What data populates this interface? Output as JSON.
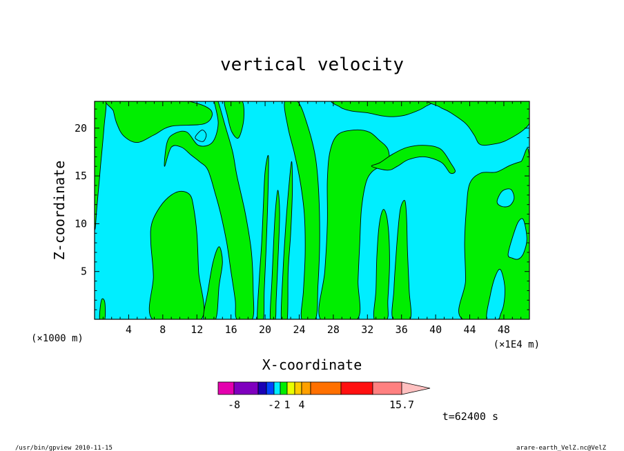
{
  "chart_data": {
    "type": "heatmap",
    "title": "vertical velocity",
    "xlabel": "X-coordinate",
    "ylabel": "Z-coordinate",
    "x_tick_labels": [
      "4",
      "8",
      "12",
      "16",
      "20",
      "24",
      "28",
      "32",
      "36",
      "40",
      "44",
      "48"
    ],
    "x_ticks": [
      4,
      8,
      12,
      16,
      20,
      24,
      28,
      32,
      36,
      40,
      44,
      48
    ],
    "y_tick_labels": [
      "5",
      "10",
      "15",
      "20"
    ],
    "y_ticks": [
      5,
      10,
      15,
      20
    ],
    "xlim": [
      0,
      51
    ],
    "ylim": [
      0,
      22.8
    ],
    "x_unit_left": "(×1000 m)",
    "x_unit_right": "(×1E4 m)",
    "fill_colors": {
      "updraft": "#00ee00",
      "downdraft": "#00eeff"
    },
    "updraft_regions": [
      {
        "label": "x=0-1.3",
        "points": [
          [
            0,
            23
          ],
          [
            1.3,
            23
          ],
          [
            1.1,
            20
          ],
          [
            0.7,
            16
          ],
          [
            0.3,
            12
          ],
          [
            0,
            10
          ]
        ]
      },
      {
        "label": "x=1-13.5 top",
        "points": [
          [
            1.8,
            23
          ],
          [
            9.5,
            23
          ],
          [
            13.5,
            22
          ],
          [
            13,
            20.5
          ],
          [
            9,
            20.2
          ],
          [
            7,
            19.3
          ],
          [
            5,
            18.5
          ],
          [
            3.4,
            19.2
          ],
          [
            2.6,
            20.5
          ],
          [
            2.2,
            21.8
          ]
        ]
      },
      {
        "label": "x=6.5-12.5",
        "points": [
          [
            6.8,
            0
          ],
          [
            6.9,
            4.5
          ],
          [
            6.6,
            8
          ],
          [
            6.7,
            10
          ],
          [
            7.7,
            11.8
          ],
          [
            9,
            13
          ],
          [
            10.2,
            13.4
          ],
          [
            11.2,
            13
          ],
          [
            11.6,
            11.8
          ],
          [
            12,
            9
          ],
          [
            12.2,
            5
          ],
          [
            12.5,
            0
          ]
        ]
      },
      {
        "label": "x=9.2-18.5",
        "points": [
          [
            8.2,
            16
          ],
          [
            9,
            18
          ],
          [
            10.2,
            18
          ],
          [
            11.3,
            17.2
          ],
          [
            12.3,
            16.5
          ],
          [
            13.3,
            15.6
          ],
          [
            14.2,
            13
          ],
          [
            14.8,
            11
          ],
          [
            15.5,
            8
          ],
          [
            16,
            5
          ],
          [
            16.5,
            2
          ],
          [
            16.7,
            0
          ],
          [
            18.5,
            0
          ],
          [
            18.6,
            3
          ],
          [
            18.4,
            7
          ],
          [
            17.7,
            11
          ],
          [
            16.7,
            15
          ],
          [
            16.2,
            17.5
          ],
          [
            15.4,
            20
          ],
          [
            14.4,
            23
          ],
          [
            14,
            23
          ],
          [
            14.5,
            20.5
          ],
          [
            13.8,
            18.5
          ],
          [
            12.2,
            18.2
          ],
          [
            10.8,
            19.6
          ],
          [
            9.3,
            19.4
          ],
          [
            8.5,
            18.5
          ]
        ]
      },
      {
        "label": "x=12.8-15",
        "points": [
          [
            12.8,
            0
          ],
          [
            13.3,
            3
          ],
          [
            13.9,
            6
          ],
          [
            14.6,
            7.6
          ],
          [
            15,
            6
          ],
          [
            14.6,
            3.5
          ],
          [
            14.2,
            0
          ]
        ]
      },
      {
        "label": "x=15.3-17.5",
        "points": [
          [
            15.3,
            23
          ],
          [
            17.2,
            23
          ],
          [
            17.5,
            21
          ],
          [
            16.9,
            19
          ],
          [
            16.1,
            19.6
          ],
          [
            15.6,
            21.2
          ]
        ]
      },
      {
        "label": "x=19.1-20.4",
        "points": [
          [
            19.1,
            0
          ],
          [
            19.3,
            4
          ],
          [
            19.6,
            8
          ],
          [
            19.8,
            12
          ],
          [
            20,
            15.5
          ],
          [
            20.4,
            17
          ],
          [
            20.3,
            12
          ],
          [
            20.1,
            7
          ],
          [
            19.9,
            3
          ],
          [
            19.8,
            0
          ]
        ]
      },
      {
        "label": "x=20.5-21.7",
        "points": [
          [
            20.6,
            0
          ],
          [
            20.8,
            4
          ],
          [
            21,
            8
          ],
          [
            21.2,
            11.3
          ],
          [
            21.5,
            13.5
          ],
          [
            21.7,
            11
          ],
          [
            21.5,
            6
          ],
          [
            21.3,
            2
          ],
          [
            21.2,
            0
          ]
        ]
      },
      {
        "label": "x=21.9-23.2",
        "points": [
          [
            21.9,
            0
          ],
          [
            22.1,
            5
          ],
          [
            22.4,
            9.5
          ],
          [
            22.7,
            13
          ],
          [
            23.1,
            16.5
          ],
          [
            23.2,
            13.5
          ],
          [
            23,
            9
          ],
          [
            22.7,
            5
          ],
          [
            22.6,
            0
          ]
        ]
      },
      {
        "label": "x=22.3-26.4",
        "points": [
          [
            22.3,
            22.8
          ],
          [
            23.8,
            22.8
          ],
          [
            24.9,
            20.5
          ],
          [
            25.9,
            17
          ],
          [
            26.3,
            13
          ],
          [
            26.4,
            8
          ],
          [
            26.2,
            3.5
          ],
          [
            25.9,
            0
          ],
          [
            24.3,
            0
          ],
          [
            24.5,
            3
          ],
          [
            24.7,
            7
          ],
          [
            24.6,
            11
          ],
          [
            24.1,
            14.5
          ],
          [
            23.4,
            17.5
          ],
          [
            22.7,
            20
          ]
        ]
      },
      {
        "label": "x=26.4-34.5",
        "points": [
          [
            26.5,
            0
          ],
          [
            27,
            5
          ],
          [
            27.3,
            10
          ],
          [
            27.3,
            14.5
          ],
          [
            27.6,
            17.5
          ],
          [
            28.5,
            19.3
          ],
          [
            30.4,
            19.8
          ],
          [
            32.2,
            19.6
          ],
          [
            33.3,
            18.8
          ],
          [
            34.4,
            17.8
          ],
          [
            34.5,
            16.3
          ],
          [
            33.6,
            16
          ],
          [
            32.5,
            15.4
          ],
          [
            31.8,
            14.2
          ],
          [
            31.3,
            11.5
          ],
          [
            31.1,
            8
          ],
          [
            30.9,
            4
          ],
          [
            30.8,
            0
          ]
        ]
      },
      {
        "label": "x=28.5-39 top",
        "points": [
          [
            28.5,
            23
          ],
          [
            39,
            23
          ],
          [
            38.7,
            22.2
          ],
          [
            36.6,
            21.4
          ],
          [
            35,
            21.2
          ],
          [
            33.6,
            21.3
          ],
          [
            32,
            21.6
          ],
          [
            30.1,
            21.8
          ],
          [
            28.8,
            22.2
          ]
        ]
      },
      {
        "label": "x=32.8-34.6",
        "points": [
          [
            32.8,
            0
          ],
          [
            33,
            3
          ],
          [
            33.1,
            6.5
          ],
          [
            33.4,
            10
          ],
          [
            33.9,
            11.5
          ],
          [
            34.4,
            10
          ],
          [
            34.6,
            6
          ],
          [
            34.4,
            2
          ],
          [
            34.3,
            0
          ]
        ]
      },
      {
        "label": "x=35-37",
        "points": [
          [
            35,
            0
          ],
          [
            35.1,
            3
          ],
          [
            35.3,
            6
          ],
          [
            35.6,
            9.5
          ],
          [
            35.9,
            11.7
          ],
          [
            36.4,
            12.4
          ],
          [
            36.6,
            10.5
          ],
          [
            36.7,
            7
          ],
          [
            36.9,
            3
          ],
          [
            37,
            0
          ]
        ]
      },
      {
        "label": "x=32-42.5",
        "points": [
          [
            32.5,
            16
          ],
          [
            33.5,
            16.4
          ],
          [
            35,
            17.3
          ],
          [
            36.7,
            18
          ],
          [
            38.8,
            18.2
          ],
          [
            40.6,
            17.8
          ],
          [
            41.8,
            16.3
          ],
          [
            42.3,
            15.5
          ],
          [
            41.7,
            15.3
          ],
          [
            40.7,
            16.4
          ],
          [
            38.7,
            17
          ],
          [
            36.8,
            16.7
          ],
          [
            35.5,
            16
          ],
          [
            34.4,
            15.6
          ]
        ]
      },
      {
        "label": "x=40-51 top",
        "points": [
          [
            39.7,
            23
          ],
          [
            51,
            23
          ],
          [
            51,
            20.5
          ],
          [
            48.5,
            18.8
          ],
          [
            46.6,
            18.3
          ],
          [
            45.2,
            18.3
          ],
          [
            44.5,
            19.3
          ],
          [
            43.5,
            20.5
          ],
          [
            41.6,
            21.7
          ],
          [
            40.5,
            22.2
          ]
        ]
      },
      {
        "label": "x=43.2-51",
        "points": [
          [
            43.2,
            0
          ],
          [
            43.5,
            4
          ],
          [
            43.4,
            8
          ],
          [
            43.6,
            11.5
          ],
          [
            44,
            14.2
          ],
          [
            45.3,
            15.3
          ],
          [
            47.1,
            15.4
          ],
          [
            48.7,
            16.1
          ],
          [
            50,
            16.5
          ],
          [
            51,
            16.7
          ],
          [
            51,
            0
          ]
        ]
      },
      {
        "label": "x=0.6-1.2 bottom",
        "points": [
          [
            0.6,
            0
          ],
          [
            0.8,
            2
          ],
          [
            1.2,
            1.8
          ],
          [
            1.2,
            0
          ]
        ]
      }
    ],
    "downdraft_islands_in_updraft": [
      {
        "label": "x=46-50 low",
        "points": [
          [
            46,
            0
          ],
          [
            46.4,
            2.5
          ],
          [
            47,
            4.5
          ],
          [
            47.6,
            5.2
          ],
          [
            48.1,
            3.5
          ],
          [
            48,
            1.6
          ],
          [
            47.6,
            0.5
          ],
          [
            47.3,
            0
          ]
        ]
      },
      {
        "label": "x=48-51 mid",
        "points": [
          [
            48.5,
            6.8
          ],
          [
            49.1,
            8.8
          ],
          [
            49.7,
            10.2
          ],
          [
            50.3,
            10.4
          ],
          [
            50.7,
            8.4
          ],
          [
            50.3,
            6.9
          ],
          [
            49.7,
            6.3
          ],
          [
            49,
            6.4
          ]
        ]
      },
      {
        "label": "x=47-49 top",
        "points": [
          [
            47.2,
            12.3
          ],
          [
            47.8,
            13.4
          ],
          [
            48.8,
            13.6
          ],
          [
            49.2,
            12.7
          ],
          [
            48.7,
            11.9
          ],
          [
            47.8,
            11.8
          ]
        ]
      },
      {
        "label": "x=11.8-13",
        "points": [
          [
            11.8,
            19
          ],
          [
            12.6,
            19.8
          ],
          [
            13.1,
            19.3
          ],
          [
            12.7,
            18.6
          ]
        ]
      }
    ],
    "colorbar": {
      "colors": [
        "#e400ae",
        "#7f00be",
        "#1a00b5",
        "#0044ff",
        "#00eeff",
        "#00ee00",
        "#eaff00",
        "#ffcc00",
        "#ffa000",
        "#ff7000",
        "#ff1010",
        "#ff8080",
        "#ffc0c0"
      ],
      "labels": [
        {
          "text": "-8",
          "index": 0
        },
        {
          "text": "-2",
          "index": 3
        },
        {
          "text": "1",
          "index": 5
        },
        {
          "text": "4",
          "index": 7
        },
        {
          "text": "15.7",
          "index": 11
        }
      ]
    },
    "time_label": "t=62400 s"
  },
  "footer": {
    "left": "/usr/bin/gpview  2010-11-15",
    "right": "arare-earth_VelZ.nc@VelZ"
  }
}
